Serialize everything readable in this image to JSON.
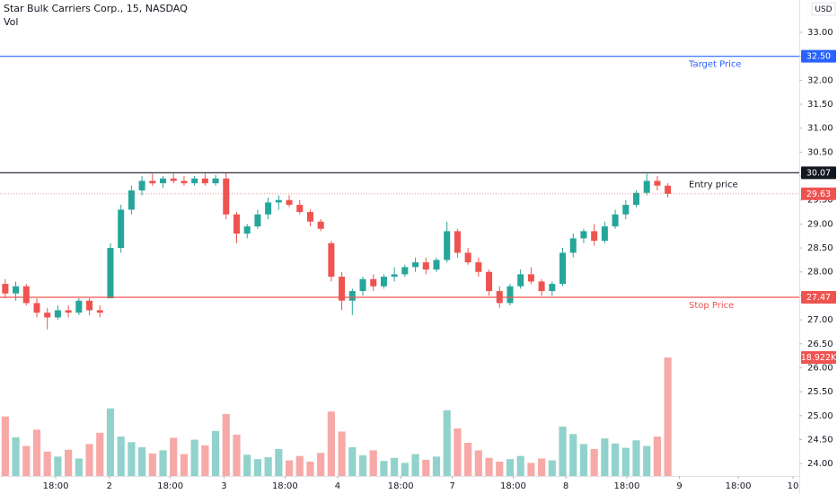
{
  "chart_data": {
    "type": "candlestick",
    "title": "Star Bulk Carriers Corp., 15, NASDAQ",
    "volume_title": "Vol",
    "currency": "USD",
    "up_color": "#26a69a",
    "down_color": "#ef5350",
    "grid": false,
    "xlim": [
      -0.5,
      75.5
    ],
    "xticks": [
      {
        "value": 4.8,
        "label": "18:00"
      },
      {
        "value": 9.9,
        "label": "2"
      },
      {
        "value": 15.7,
        "label": "18:00"
      },
      {
        "value": 20.8,
        "label": "3"
      },
      {
        "value": 26.6,
        "label": "18:00"
      },
      {
        "value": 31.6,
        "label": "4"
      },
      {
        "value": 37.6,
        "label": "18:00"
      },
      {
        "value": 42.5,
        "label": "7"
      },
      {
        "value": 48.3,
        "label": "18:00"
      },
      {
        "value": 53.3,
        "label": "8"
      },
      {
        "value": 59.1,
        "label": "18:00"
      },
      {
        "value": 64.1,
        "label": "9"
      },
      {
        "value": 69.7,
        "label": "18:00"
      },
      {
        "value": 74.9,
        "label": "10"
      }
    ],
    "ylim": [
      23.74,
      33.675
    ],
    "yticks": [
      {
        "value": 24,
        "label": "24.00"
      },
      {
        "value": 24.5,
        "label": "24.50"
      },
      {
        "value": 25,
        "label": "25.00"
      },
      {
        "value": 25.5,
        "label": "25.50"
      },
      {
        "value": 26,
        "label": "26.00"
      },
      {
        "value": 26.5,
        "label": "26.50"
      },
      {
        "value": 27,
        "label": "27.00"
      },
      {
        "value": 27.5,
        "label": "27.50"
      },
      {
        "value": 28,
        "label": "28.00"
      },
      {
        "value": 28.5,
        "label": "28.50"
      },
      {
        "value": 29,
        "label": "29.00"
      },
      {
        "value": 29.5,
        "label": "29.50"
      },
      {
        "value": 30,
        "label": "30.00"
      },
      {
        "value": 30.5,
        "label": "30.50"
      },
      {
        "value": 31,
        "label": "31.00"
      },
      {
        "value": 31.5,
        "label": "31.50"
      },
      {
        "value": 32,
        "label": "32.00"
      },
      {
        "value": 32.5,
        "label": "32.50"
      },
      {
        "value": 33,
        "label": "33.00"
      }
    ],
    "open": [
      27.75,
      27.55,
      27.7,
      27.35,
      27.15,
      27.05,
      27.2,
      27.15,
      27.4,
      27.2,
      27.45,
      28.5,
      29.3,
      29.7,
      29.9,
      29.85,
      29.95,
      29.9,
      29.85,
      29.95,
      29.85,
      29.95,
      29.2,
      28.8,
      28.95,
      29.2,
      29.45,
      29.5,
      29.4,
      29.25,
      29.05,
      28.6,
      27.9,
      27.4,
      27.6,
      27.85,
      27.7,
      27.9,
      27.95,
      28.1,
      28.2,
      28.05,
      28.25,
      28.85,
      28.4,
      28.2,
      28.0,
      27.6,
      27.35,
      27.7,
      27.95,
      27.8,
      27.6,
      27.75,
      28.4,
      28.7,
      28.85,
      28.65,
      28.95,
      29.2,
      29.4,
      29.65,
      29.9,
      29.8
    ],
    "high": [
      27.85,
      27.8,
      27.75,
      27.45,
      27.25,
      27.3,
      27.3,
      27.45,
      27.45,
      27.3,
      28.6,
      29.4,
      29.8,
      30.0,
      30.05,
      30.0,
      30.05,
      30.0,
      30.0,
      30.05,
      30.02,
      30.07,
      29.25,
      29.0,
      29.3,
      29.55,
      29.6,
      29.6,
      29.5,
      29.3,
      29.1,
      28.65,
      28.0,
      27.65,
      27.9,
      27.95,
      27.95,
      28.1,
      28.15,
      28.3,
      28.3,
      28.3,
      29.05,
      28.9,
      28.5,
      28.3,
      28.05,
      27.7,
      27.75,
      28.05,
      28.1,
      27.85,
      27.8,
      28.5,
      28.8,
      28.9,
      29.0,
      29.05,
      29.3,
      29.5,
      29.7,
      30.05,
      30.0,
      29.85
    ],
    "low": [
      27.45,
      27.4,
      27.3,
      27.05,
      26.8,
      27.0,
      27.05,
      27.1,
      27.1,
      27.05,
      27.45,
      28.4,
      29.2,
      29.6,
      29.8,
      29.75,
      29.85,
      29.8,
      29.8,
      29.8,
      29.8,
      29.1,
      28.6,
      28.7,
      28.9,
      29.1,
      29.3,
      29.35,
      29.2,
      28.95,
      28.85,
      27.8,
      27.2,
      27.1,
      27.5,
      27.6,
      27.65,
      27.8,
      27.9,
      28.0,
      27.95,
      28.0,
      28.2,
      28.3,
      28.15,
      27.9,
      27.5,
      27.25,
      27.3,
      27.65,
      27.75,
      27.5,
      27.5,
      27.7,
      28.3,
      28.6,
      28.55,
      28.6,
      28.9,
      29.1,
      29.35,
      29.6,
      29.7,
      29.55
    ],
    "close": [
      27.55,
      27.7,
      27.35,
      27.15,
      27.05,
      27.2,
      27.15,
      27.4,
      27.2,
      27.15,
      28.5,
      29.3,
      29.7,
      29.9,
      29.85,
      29.95,
      29.9,
      29.85,
      29.95,
      29.85,
      29.95,
      29.2,
      28.8,
      28.95,
      29.2,
      29.45,
      29.5,
      29.4,
      29.25,
      29.05,
      28.9,
      27.9,
      27.4,
      27.6,
      27.85,
      27.7,
      27.9,
      27.95,
      28.1,
      28.2,
      28.05,
      28.25,
      28.85,
      28.4,
      28.2,
      28.0,
      27.6,
      27.35,
      27.7,
      27.95,
      27.8,
      27.6,
      27.75,
      28.4,
      28.7,
      28.85,
      28.65,
      28.95,
      29.2,
      29.4,
      29.65,
      29.9,
      29.8,
      29.63
    ],
    "volume": [
      9500,
      6200,
      4800,
      7400,
      3900,
      3100,
      4200,
      2800,
      5100,
      6900,
      10800,
      6300,
      5400,
      4600,
      3600,
      4100,
      6100,
      3500,
      5800,
      4900,
      7200,
      9900,
      6600,
      3400,
      2700,
      3000,
      4300,
      2500,
      3200,
      2300,
      3700,
      10300,
      7100,
      4600,
      3300,
      4100,
      2400,
      2900,
      2100,
      3500,
      2600,
      3100,
      10500,
      7600,
      5300,
      4100,
      2900,
      2300,
      2700,
      3200,
      2100,
      2800,
      2500,
      7900,
      6700,
      5100,
      4300,
      6000,
      5200,
      4500,
      5700,
      4800,
      6300,
      18922
    ],
    "volume_label": "18.922K",
    "vlim": [
      0,
      28670
    ],
    "levels": [
      {
        "name": "Target Price",
        "value": 32.5,
        "label": "32.50",
        "color": "#2962ff"
      },
      {
        "name": "Entry price",
        "value": 30.07,
        "label": "30.07",
        "color": "#131722"
      },
      {
        "name": "Stop Price",
        "value": 27.47,
        "label": "27.47",
        "color": "#ef5350"
      }
    ],
    "last_price": {
      "value": 29.63,
      "label": "29.63",
      "color": "#ef5350"
    }
  }
}
